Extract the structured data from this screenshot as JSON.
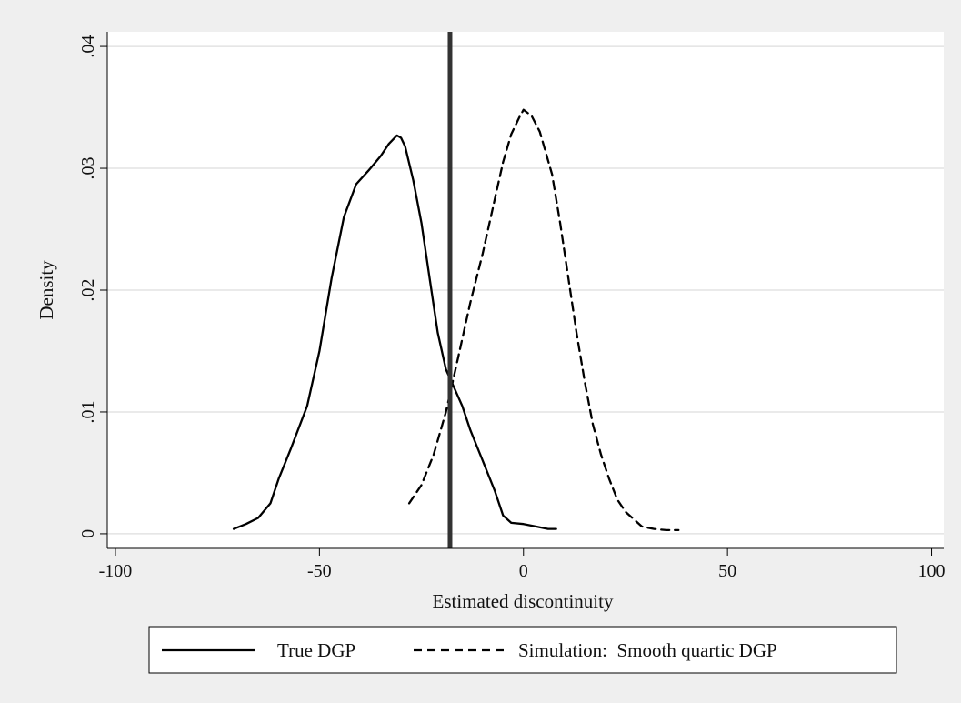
{
  "chart_data": {
    "type": "line",
    "title": "",
    "xlabel": "Estimated discontinuity",
    "ylabel": "Density",
    "xlim": [
      -102,
      103
    ],
    "ylim": [
      -0.0012,
      0.0412
    ],
    "x_ticks": [
      -100,
      -50,
      0,
      50,
      100
    ],
    "x_tick_labels": [
      "-100",
      "-50",
      "0",
      "50",
      "100"
    ],
    "y_ticks": [
      0,
      0.01,
      0.02,
      0.03,
      0.04
    ],
    "y_tick_labels": [
      "0",
      ".01",
      ".02",
      ".03",
      ".04"
    ],
    "grid": "horizontal",
    "legend_position": "bottom",
    "reference_line_x": -18,
    "series": [
      {
        "name": "True DGP",
        "style": "solid",
        "color": "#000000",
        "points": [
          [
            -71,
            0.0004
          ],
          [
            -68,
            0.0008
          ],
          [
            -65,
            0.0013
          ],
          [
            -62,
            0.0025
          ],
          [
            -60,
            0.0045
          ],
          [
            -57,
            0.007
          ],
          [
            -53,
            0.0105
          ],
          [
            -50,
            0.015
          ],
          [
            -47,
            0.021
          ],
          [
            -44,
            0.026
          ],
          [
            -41,
            0.0287
          ],
          [
            -38,
            0.0298
          ],
          [
            -35,
            0.031
          ],
          [
            -33,
            0.032
          ],
          [
            -31,
            0.0327
          ],
          [
            -30,
            0.0325
          ],
          [
            -29,
            0.0318
          ],
          [
            -27,
            0.029
          ],
          [
            -25,
            0.0255
          ],
          [
            -23,
            0.021
          ],
          [
            -21,
            0.0165
          ],
          [
            -19,
            0.0135
          ],
          [
            -17,
            0.012
          ],
          [
            -15,
            0.0105
          ],
          [
            -13,
            0.0085
          ],
          [
            -10,
            0.006
          ],
          [
            -7,
            0.0035
          ],
          [
            -5,
            0.0015
          ],
          [
            -3,
            0.0009
          ],
          [
            0,
            0.0008
          ],
          [
            3,
            0.0006
          ],
          [
            6,
            0.0004
          ],
          [
            8,
            0.0004
          ]
        ]
      },
      {
        "name": "Simulation:  Smooth quartic DGP",
        "style": "dashed",
        "color": "#000000",
        "points": [
          [
            -28,
            0.0025
          ],
          [
            -25,
            0.004
          ],
          [
            -22,
            0.0065
          ],
          [
            -19,
            0.01
          ],
          [
            -16,
            0.0145
          ],
          [
            -13,
            0.019
          ],
          [
            -10,
            0.023
          ],
          [
            -7,
            0.0275
          ],
          [
            -5,
            0.0305
          ],
          [
            -3,
            0.0328
          ],
          [
            -1,
            0.0342
          ],
          [
            0,
            0.0348
          ],
          [
            2,
            0.0343
          ],
          [
            4,
            0.033
          ],
          [
            7,
            0.0295
          ],
          [
            9,
            0.0255
          ],
          [
            11,
            0.021
          ],
          [
            13,
            0.0165
          ],
          [
            15,
            0.0125
          ],
          [
            17,
            0.009
          ],
          [
            19,
            0.0065
          ],
          [
            21,
            0.0045
          ],
          [
            23,
            0.0028
          ],
          [
            25,
            0.0018
          ],
          [
            27,
            0.0012
          ],
          [
            29,
            0.0006
          ],
          [
            32,
            0.0004
          ],
          [
            35,
            0.0003
          ],
          [
            38,
            0.0003
          ]
        ]
      }
    ]
  },
  "legend": {
    "items": [
      "True DGP",
      "Simulation:  Smooth quartic DGP"
    ]
  }
}
